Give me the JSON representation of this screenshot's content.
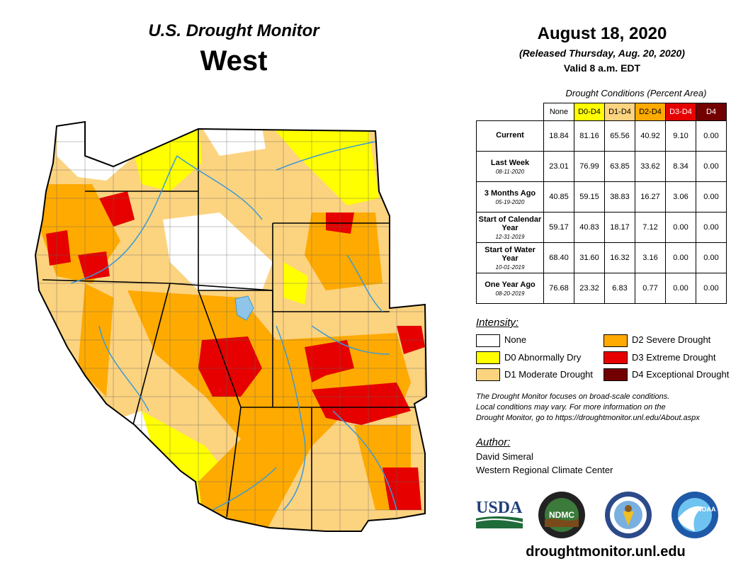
{
  "header": {
    "title": "U.S. Drought Monitor",
    "region": "West",
    "date": "August 18, 2020",
    "released": "(Released Thursday, Aug. 20, 2020)",
    "valid": "Valid 8 a.m. EDT"
  },
  "table": {
    "caption": "Drought Conditions (Percent Area)",
    "columns": [
      "None",
      "D0-D4",
      "D1-D4",
      "D2-D4",
      "D3-D4",
      "D4"
    ],
    "column_colors": [
      "#ffffff",
      "#ffff00",
      "#fcd37f",
      "#ffaa00",
      "#e60000",
      "#730000"
    ],
    "rows": [
      {
        "label": "Current",
        "sub": "",
        "values": [
          "18.84",
          "81.16",
          "65.56",
          "40.92",
          "9.10",
          "0.00"
        ]
      },
      {
        "label": "Last Week",
        "sub": "08-11-2020",
        "values": [
          "23.01",
          "76.99",
          "63.85",
          "33.62",
          "8.34",
          "0.00"
        ]
      },
      {
        "label": "3 Months Ago",
        "sub": "05-19-2020",
        "values": [
          "40.85",
          "59.15",
          "38.83",
          "16.27",
          "3.06",
          "0.00"
        ]
      },
      {
        "label": "Start of Calendar Year",
        "sub": "12-31-2019",
        "values": [
          "59.17",
          "40.83",
          "18.17",
          "7.12",
          "0.00",
          "0.00"
        ]
      },
      {
        "label": "Start of Water Year",
        "sub": "10-01-2019",
        "values": [
          "68.40",
          "31.60",
          "16.32",
          "3.16",
          "0.00",
          "0.00"
        ]
      },
      {
        "label": "One Year Ago",
        "sub": "08-20-2019",
        "values": [
          "76.68",
          "23.32",
          "6.83",
          "0.77",
          "0.00",
          "0.00"
        ]
      }
    ]
  },
  "legend": {
    "title": "Intensity:",
    "items": [
      {
        "label": "None",
        "color": "#ffffff"
      },
      {
        "label": "D0 Abnormally Dry",
        "color": "#ffff00"
      },
      {
        "label": "D1 Moderate Drought",
        "color": "#fcd37f"
      },
      {
        "label": "D2 Severe Drought",
        "color": "#ffaa00"
      },
      {
        "label": "D3 Extreme Drought",
        "color": "#e60000"
      },
      {
        "label": "D4 Exceptional Drought",
        "color": "#730000"
      }
    ]
  },
  "note": {
    "line1": "The Drought Monitor focuses on broad-scale conditions.",
    "line2": "Local conditions may vary. For more information on the",
    "line3": "Drought Monitor, go to https://droughtmonitor.unl.edu/About.aspx"
  },
  "author": {
    "title": "Author:",
    "name": "David Simeral",
    "org": "Western Regional Climate Center"
  },
  "logos": {
    "usda": "USDA",
    "ndmc": "NDMC",
    "noaa": "NOAA"
  },
  "url": "droughtmonitor.unl.edu"
}
